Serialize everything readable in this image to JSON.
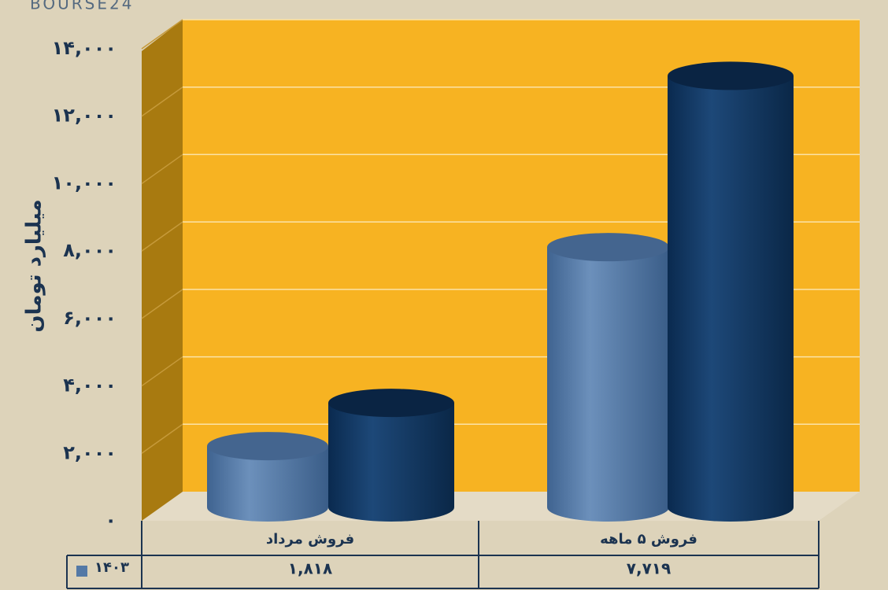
{
  "chart_data": {
    "type": "cylinder",
    "watermark": "BOURSE24",
    "y_axis_label": "میلیارد تومان",
    "categories": [
      "فروش مرداد",
      "فروش ۵ ماهه"
    ],
    "series": [
      {
        "name": "۱۴۰۳",
        "color": "#5479a6",
        "values": [
          1818,
          7719
        ],
        "value_labels": [
          "۱,۸۱۸",
          "۷,۷۱۹"
        ]
      },
      {
        "color": "#0f3560",
        "values": [
          3100,
          12800
        ]
      }
    ],
    "ylim": [
      0,
      14000
    ],
    "yticks": [
      {
        "value": 0,
        "label": "۰"
      },
      {
        "value": 2000,
        "label": "۲,۰۰۰"
      },
      {
        "value": 4000,
        "label": "۴,۰۰۰"
      },
      {
        "value": 6000,
        "label": "۶,۰۰۰"
      },
      {
        "value": 8000,
        "label": "۸,۰۰۰"
      },
      {
        "value": 10000,
        "label": "۱۰,۰۰۰"
      },
      {
        "value": 12000,
        "label": "۱۲,۰۰۰"
      },
      {
        "value": 14000,
        "label": "۱۴,۰۰۰"
      }
    ],
    "grid": true
  }
}
